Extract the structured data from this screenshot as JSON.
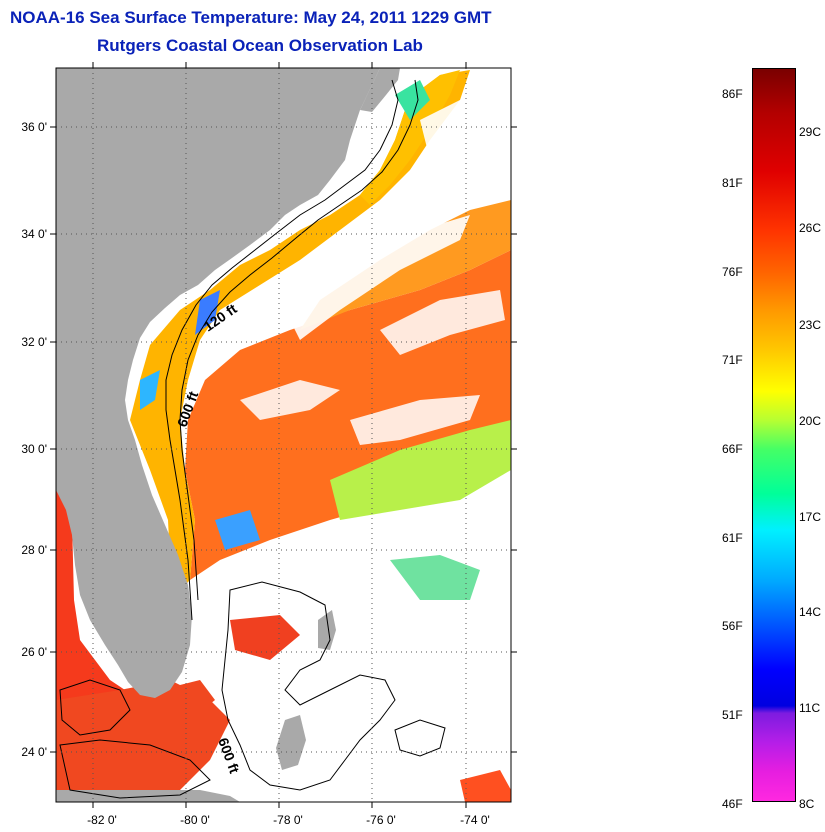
{
  "title": {
    "line1": "NOAA-16 Sea Surface Temperature:  May 24, 2011 1229 GMT",
    "line2": "Rutgers Coastal Ocean Observation Lab"
  },
  "axes": {
    "lat_labels": [
      "36 0'",
      "34 0'",
      "32 0'",
      "30 0'",
      "28 0'",
      "26 0'",
      "24 0'"
    ],
    "lon_labels": [
      "-82 0'",
      "-80 0'",
      "-78 0'",
      "-76 0'",
      "-74 0'"
    ]
  },
  "isobaths": [
    "120 ft",
    "600 ft",
    "600 ft"
  ],
  "colorbar": {
    "fahrenheit": [
      "86F",
      "81F",
      "76F",
      "71F",
      "66F",
      "61F",
      "56F",
      "51F",
      "46F"
    ],
    "celsius": [
      "29C",
      "26C",
      "23C",
      "20C",
      "17C",
      "14C",
      "11C",
      "8C"
    ]
  },
  "colors": {
    "land": "#a9a9a9",
    "cloud": "#ffffff",
    "ocean_warm": "#ff6a1a",
    "ocean_shelf": "#ffb400",
    "title_blue": "#0a22b8"
  }
}
